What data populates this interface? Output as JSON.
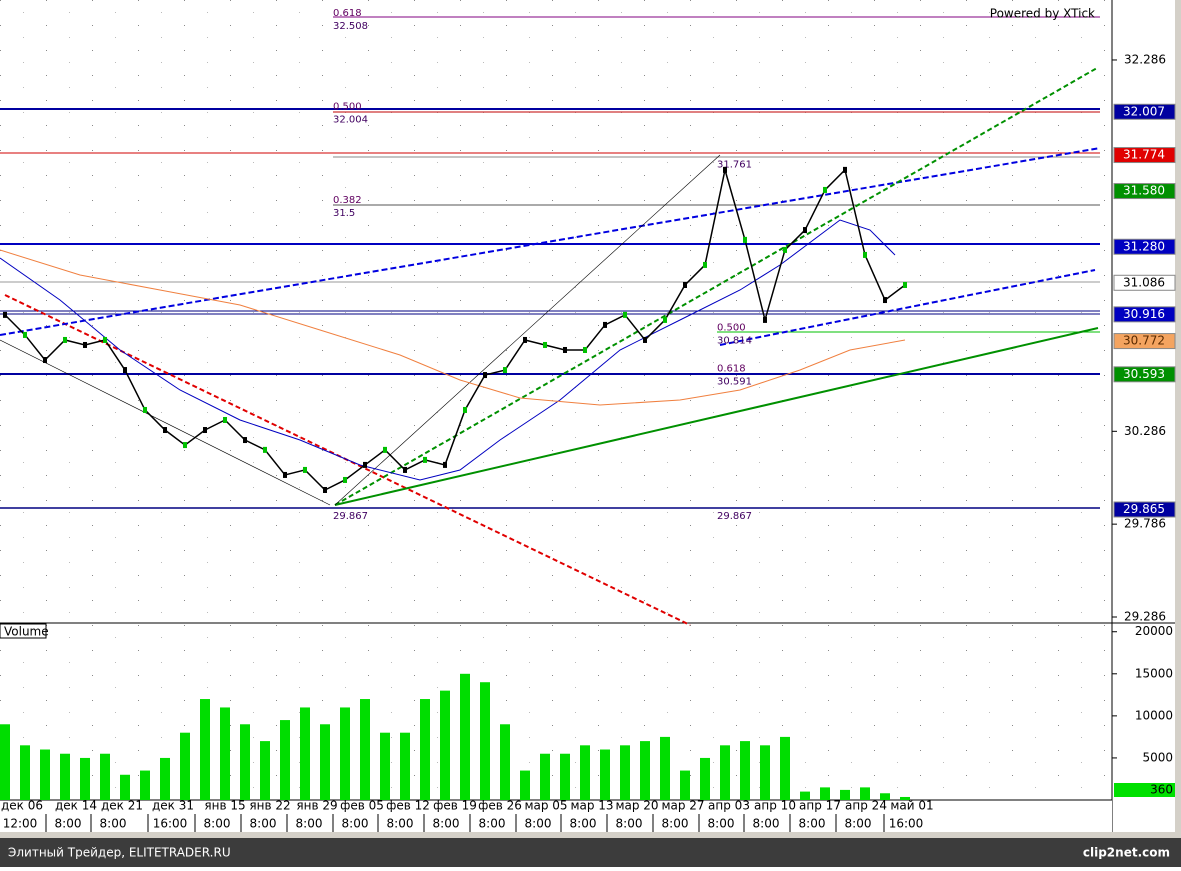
{
  "chart_data": [
    {
      "type": "line",
      "watermark": "Powered by XTick",
      "values": [
        30.913,
        30.805,
        30.67,
        30.778,
        30.751,
        30.778,
        30.616,
        30.401,
        30.293,
        30.212,
        30.293,
        30.347,
        30.239,
        30.186,
        30.051,
        30.078,
        29.97,
        30.024,
        30.105,
        30.186,
        30.078,
        30.132,
        30.105,
        30.401,
        30.589,
        30.616,
        30.778,
        30.751,
        30.724,
        30.724,
        30.859,
        30.913,
        30.778,
        30.886,
        31.074,
        31.182,
        31.694,
        31.317,
        30.886,
        31.263,
        31.37,
        31.586,
        31.694,
        31.236,
        30.993,
        31.074
      ],
      "color": "#000000",
      "ylim": [
        32.609,
        29.259
      ],
      "yticks": [
        32.286,
        30.286,
        29.786,
        29.286
      ],
      "price_markers": [
        {
          "value": 32.007,
          "color": "#0000a0",
          "text_color": "#ffffff"
        },
        {
          "value": 31.774,
          "color": "#e00000",
          "text_color": "#ffffff"
        },
        {
          "value": 31.58,
          "label": "31.580",
          "color": "#009000",
          "text_color": "#ffffff"
        },
        {
          "value": 31.28,
          "label": "31.280",
          "color": "#0000c0",
          "text_color": "#ffffff"
        },
        {
          "value": 31.086,
          "color": "#ffffff",
          "text_color": "#000000"
        },
        {
          "value": 30.916,
          "color": "#0000c0",
          "text_color": "#ffffff"
        },
        {
          "value": 30.772,
          "color": "#f4a460",
          "text_color": "#5a2a00"
        },
        {
          "value": 30.593,
          "color": "#009000",
          "text_color": "#ffffff"
        },
        {
          "value": 29.865,
          "color": "#0000a0",
          "text_color": "#ffffff"
        }
      ],
      "fib_left": [
        {
          "ratio": "0.618",
          "price": 32.508
        },
        {
          "ratio": "0.500",
          "price": 32.004
        },
        {
          "ratio": "0.382",
          "price": 31.5
        },
        {
          "price": 29.867
        }
      ],
      "fib_right": [
        {
          "price": 31.761
        },
        {
          "ratio": "0.500",
          "price": 30.814
        },
        {
          "ratio": "0.618",
          "price": 30.591
        },
        {
          "price": 29.867
        }
      ]
    },
    {
      "type": "bar",
      "name": "Volume",
      "color": "#00dd00",
      "values": [
        9000,
        6500,
        6000,
        5500,
        5000,
        5500,
        3000,
        3500,
        5000,
        8000,
        12000,
        11000,
        9000,
        7000,
        9500,
        11000,
        9000,
        11000,
        12000,
        8000,
        8000,
        12000,
        13000,
        15000,
        14000,
        9000,
        3500,
        5500,
        5500,
        6500,
        6000,
        6500,
        7000,
        7500,
        3500,
        5000,
        6500,
        7000,
        6500,
        7500,
        1000,
        1500,
        1200,
        1500,
        800,
        360
      ],
      "ylim": [
        0,
        20800
      ],
      "yticks": [
        20000,
        15000,
        10000,
        5000
      ]
    }
  ],
  "x_axis": {
    "dates": [
      "дек 06",
      "дек 14",
      "дек 21",
      "дек 31",
      "янв 15",
      "янв 22",
      "янв 29",
      "фев 05",
      "фев 12",
      "фев 19",
      "фев 26",
      "мар 05",
      "мар 13",
      "мар 20",
      "мар 27",
      "апр 03",
      "апр 10",
      "апр 17",
      "апр 24",
      "май 01"
    ],
    "times": [
      "12:00",
      "8:00",
      "8:00",
      "16:00",
      "8:00",
      "8:00",
      "8:00",
      "8:00",
      "8:00",
      "8:00",
      "8:00",
      "8:00",
      "8:00",
      "8:00",
      "8:00",
      "8:00",
      "8:00",
      "8:00",
      "8:00",
      "16:00"
    ]
  },
  "footer": {
    "text": "Элитный Трейдер, ELITETRADER.RU",
    "logo": "clip2net.com"
  }
}
